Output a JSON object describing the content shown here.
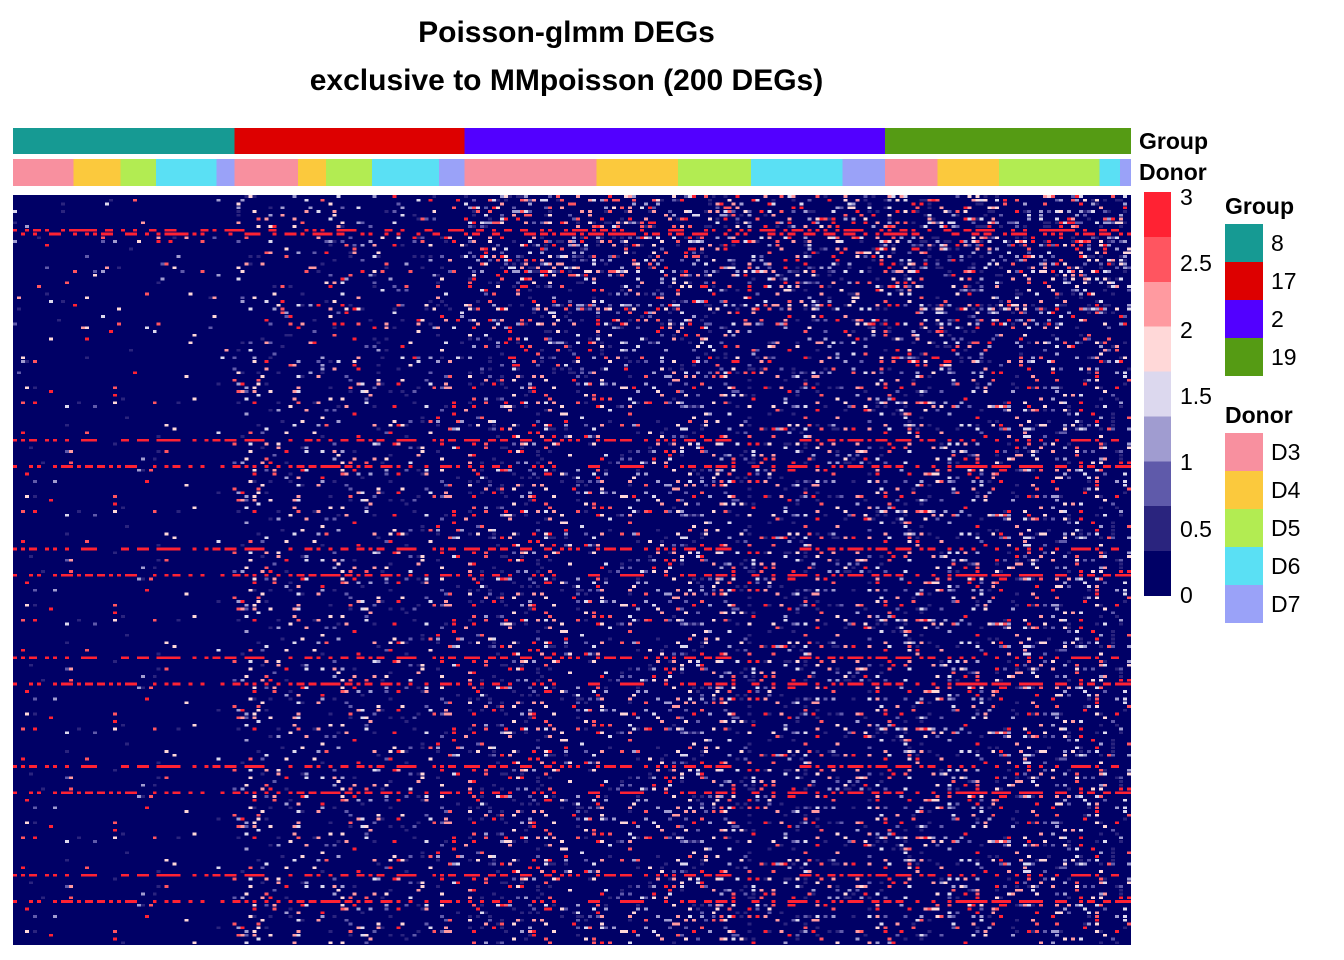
{
  "title": {
    "line1": "Poisson-glmm DEGs",
    "line2": "exclusive to MMpoisson (200 DEGs)"
  },
  "annotation_labels": {
    "group": "Group",
    "donor": "Donor"
  },
  "chart_data": {
    "type": "heatmap",
    "title": "Poisson-glmm DEGs exclusive to MMpoisson (200 DEGs)",
    "rows": 200,
    "color_scale": {
      "min": 0,
      "max": 3,
      "ticks": [
        "3",
        "2.5",
        "2",
        "1.5",
        "1",
        "0.5",
        "0"
      ],
      "bins": [
        {
          "from": 2.75,
          "to": 3.0,
          "color": "#ff2233"
        },
        {
          "from": 2.5,
          "to": 2.75,
          "color": "#ff5560"
        },
        {
          "from": 2.25,
          "to": 2.5,
          "color": "#ff9aa0"
        },
        {
          "from": 2.0,
          "to": 2.25,
          "color": "#ffd8d8"
        },
        {
          "from": 1.75,
          "to": 2.0,
          "color": "#dcd8ee"
        },
        {
          "from": 1.5,
          "to": 1.75,
          "color": "#a09cd0"
        },
        {
          "from": 1.25,
          "to": 1.5,
          "color": "#5f5aaa"
        },
        {
          "from": 0.75,
          "to": 1.25,
          "color": "#2a247e"
        },
        {
          "from": 0.0,
          "to": 0.75,
          "color": "#000066"
        }
      ]
    },
    "column_annotations": {
      "group": [
        {
          "name": "8",
          "color": "#169a93",
          "fraction": 0.198
        },
        {
          "name": "17",
          "color": "#dd0000",
          "fraction": 0.206
        },
        {
          "name": "2",
          "color": "#5200ff",
          "fraction": 0.376
        },
        {
          "name": "19",
          "color": "#559b14",
          "fraction": 0.22
        }
      ],
      "donor": [
        {
          "name": "D3",
          "fraction": 0.054
        },
        {
          "name": "D4",
          "fraction": 0.042
        },
        {
          "name": "D5",
          "fraction": 0.032
        },
        {
          "name": "D6",
          "fraction": 0.054
        },
        {
          "name": "D7",
          "fraction": 0.016
        },
        {
          "name": "D3",
          "fraction": 0.057
        },
        {
          "name": "D4",
          "fraction": 0.025
        },
        {
          "name": "D5",
          "fraction": 0.041
        },
        {
          "name": "D6",
          "fraction": 0.06
        },
        {
          "name": "D7",
          "fraction": 0.023
        },
        {
          "name": "D3",
          "fraction": 0.118
        },
        {
          "name": "D4",
          "fraction": 0.073
        },
        {
          "name": "D5",
          "fraction": 0.065
        },
        {
          "name": "D6",
          "fraction": 0.082
        },
        {
          "name": "D7",
          "fraction": 0.038
        },
        {
          "name": "D3",
          "fraction": 0.047
        },
        {
          "name": "D4",
          "fraction": 0.055
        },
        {
          "name": "D5",
          "fraction": 0.09
        },
        {
          "name": "D6",
          "fraction": 0.018
        },
        {
          "name": "D7",
          "fraction": 0.01
        }
      ]
    },
    "legends": {
      "group": {
        "title": "Group",
        "entries": [
          {
            "label": "8",
            "color": "#169a93"
          },
          {
            "label": "17",
            "color": "#dd0000"
          },
          {
            "label": "2",
            "color": "#5200ff"
          },
          {
            "label": "19",
            "color": "#559b14"
          }
        ]
      },
      "donor": {
        "title": "Donor",
        "entries": [
          {
            "label": "D3",
            "color": "#f8909f"
          },
          {
            "label": "D4",
            "color": "#fbc93d"
          },
          {
            "label": "D5",
            "color": "#b2ec52"
          },
          {
            "label": "D6",
            "color": "#5ae0f4"
          },
          {
            "label": "D7",
            "color": "#9aa2f8"
          }
        ]
      }
    }
  }
}
